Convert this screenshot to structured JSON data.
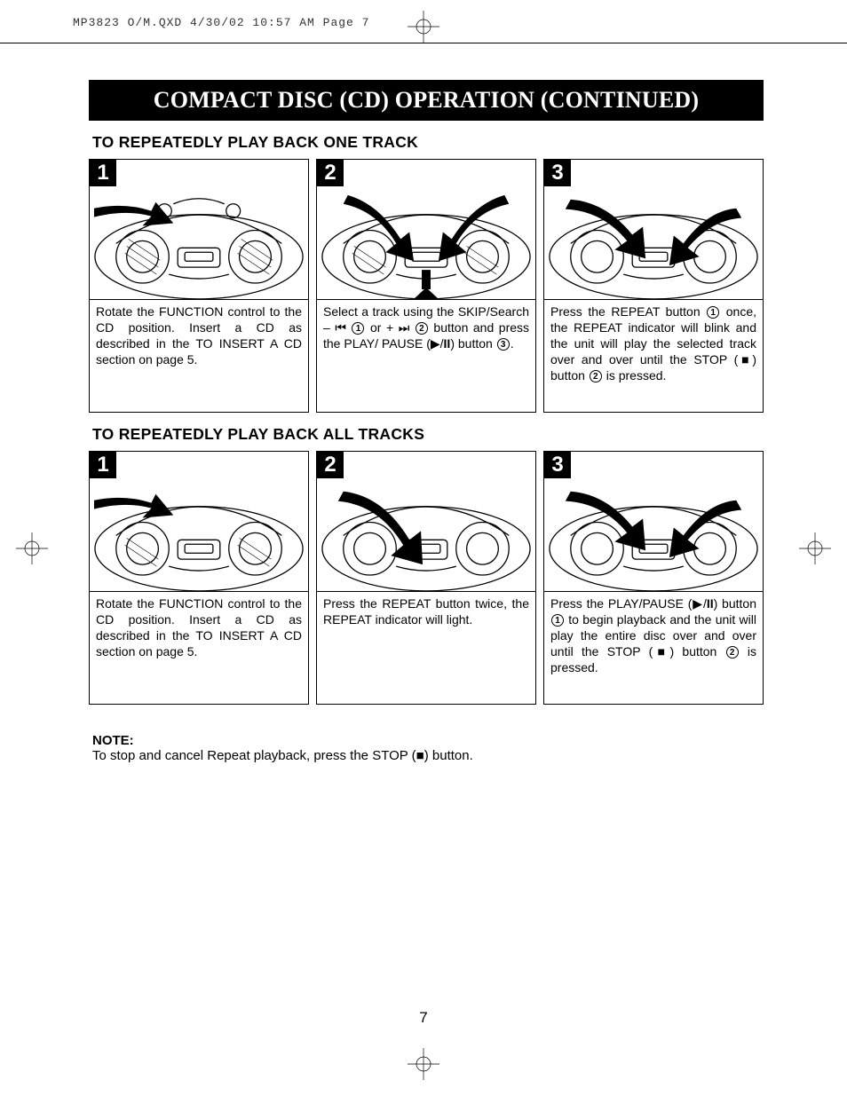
{
  "header_line": "MP3823 O/M.QXD  4/30/02  10:57 AM  Page 7",
  "title": "COMPACT DISC (CD) OPERATION (CONTINUED)",
  "page_number": "7",
  "section1": {
    "heading": "TO REPEATEDLY PLAY BACK ONE TRACK",
    "steps": [
      {
        "num": "1",
        "text": "Rotate the FUNCTION control to the CD position. Insert a CD as described in the TO INSERT A CD section on page 5."
      },
      {
        "num": "2",
        "html": "Select a track using the SKIP/Search – <span class='sym'>⏮</span> <span class='circled'>1</span> or + <span class='sym'>⏭</span> <span class='circled'>2</span> button and press the  PLAY/ PAUSE (<span class='sym'>▶</span>/<b>II</b>) button <span class='circled'>3</span>."
      },
      {
        "num": "3",
        "html": "Press the REPEAT button <span class='circled'>1</span> once, the REPEAT indicator will blink and the unit will play the selected track over and over until the STOP (<span class='sym'>■</span>) button <span class='circled'>2</span> is pressed."
      }
    ]
  },
  "section2": {
    "heading": "TO REPEATEDLY PLAY BACK ALL TRACKS",
    "steps": [
      {
        "num": "1",
        "text": "Rotate the FUNCTION control to the CD position. Insert a CD as described in the TO INSERT A CD section on page 5."
      },
      {
        "num": "2",
        "text": "Press the REPEAT button twice, the REPEAT indicator will light."
      },
      {
        "num": "3",
        "html": "Press the PLAY/PAUSE (<span class='sym'>▶</span>/<b>II</b>) button <span class='circled'>1</span> to begin playback and the unit will play the entire disc over and over until the STOP (<span class='sym'>■</span>) button <span class='circled'>2</span> is pressed."
      }
    ]
  },
  "note": {
    "label": "NOTE:",
    "html": "To stop and cancel Repeat playback, press the STOP (<span class='sym'>■</span>) button."
  },
  "colors": {
    "page_bg": "#ffffff",
    "text": "#000000",
    "title_bg": "#000000",
    "title_fg": "#ffffff",
    "border": "#000000"
  }
}
